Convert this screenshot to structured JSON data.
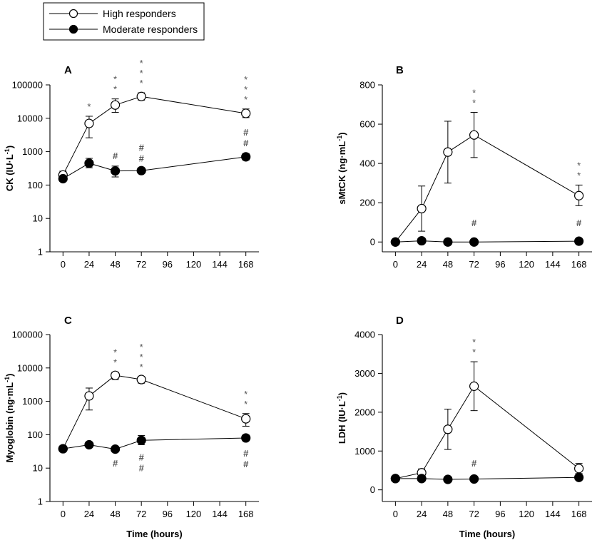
{
  "legend": {
    "series1": "High responders",
    "series2": "Moderate responders"
  },
  "colors": {
    "filled": "#000000",
    "open": "#ffffff",
    "axis": "#000000",
    "annotation": "#555555"
  },
  "chart_data": [
    {
      "panel": "A",
      "type": "line",
      "yscale": "log",
      "ylabel_main": "CK (IU·L",
      "ylabel_sup": "-1",
      "ylabel_end": ")",
      "xlabel": "",
      "x": [
        0,
        24,
        48,
        72,
        168
      ],
      "x_ticks": [
        0,
        24,
        48,
        72,
        96,
        120,
        144,
        168
      ],
      "x_tick_labels": [
        "0",
        "24",
        "48",
        "72",
        "96",
        "120",
        "144",
        "168"
      ],
      "xlim": [
        -12,
        180
      ],
      "ylim": [
        1,
        100000
      ],
      "y_ticks": [
        1,
        10,
        100,
        1000,
        10000,
        100000
      ],
      "y_tick_labels": [
        "1",
        "10",
        "100",
        "1000",
        "10000",
        "100000"
      ],
      "series": [
        {
          "name": "High responders",
          "marker": "open",
          "values": [
            200,
            7000,
            25000,
            45000,
            14000
          ],
          "err_upper": [
            260,
            11500,
            38000,
            58000,
            19000
          ],
          "err_lower": [
            160,
            2600,
            15000,
            35000,
            10500
          ]
        },
        {
          "name": "Moderate responders",
          "marker": "filled",
          "values": [
            155,
            450,
            265,
            270,
            700
          ],
          "err_upper": [
            180,
            630,
            370,
            310,
            880
          ],
          "err_lower": [
            130,
            330,
            175,
            240,
            560
          ]
        }
      ],
      "annotations": [
        {
          "x": 24,
          "symbol": "*",
          "count": 1,
          "position": "above",
          "anchor": 11500
        },
        {
          "x": 48,
          "symbol": "*",
          "count": 2,
          "position": "above",
          "anchor": 38000
        },
        {
          "x": 72,
          "symbol": "*",
          "count": 3,
          "position": "above",
          "anchor": 58000
        },
        {
          "x": 168,
          "symbol": "*",
          "count": 3,
          "position": "above",
          "anchor": 19000
        },
        {
          "x": 48,
          "symbol": "#",
          "count": 1,
          "position": "above",
          "anchor": 370
        },
        {
          "x": 72,
          "symbol": "#",
          "count": 2,
          "position": "above",
          "anchor": 310
        },
        {
          "x": 168,
          "symbol": "#",
          "count": 2,
          "position": "above",
          "anchor": 880
        }
      ]
    },
    {
      "panel": "B",
      "type": "line",
      "yscale": "linear",
      "ylabel_main": "sMtCK (ng·mL",
      "ylabel_sup": "-1",
      "ylabel_end": ")",
      "xlabel": "",
      "x": [
        0,
        24,
        48,
        72,
        168
      ],
      "x_ticks": [
        0,
        24,
        48,
        72,
        96,
        120,
        144,
        168
      ],
      "x_tick_labels": [
        "0",
        "24",
        "48",
        "72",
        "96",
        "120",
        "144",
        "168"
      ],
      "xlim": [
        -12,
        180
      ],
      "ylim": [
        -50,
        800
      ],
      "y_ticks": [
        0,
        200,
        400,
        600,
        800
      ],
      "y_tick_labels": [
        "0",
        "200",
        "400",
        "600",
        "800"
      ],
      "series": [
        {
          "name": "High responders",
          "marker": "open",
          "values": [
            0,
            170,
            458,
            545,
            236
          ],
          "err_upper": [
            0,
            285,
            615,
            660,
            290
          ],
          "err_lower": [
            0,
            55,
            300,
            430,
            185
          ]
        },
        {
          "name": "Moderate responders",
          "marker": "filled",
          "values": [
            0,
            6,
            0,
            0,
            4
          ],
          "err_upper": [
            0,
            10,
            3,
            3,
            8
          ],
          "err_lower": [
            0,
            2,
            0,
            0,
            0
          ]
        }
      ],
      "annotations": [
        {
          "x": 72,
          "symbol": "*",
          "count": 2,
          "position": "above",
          "anchor": 660
        },
        {
          "x": 168,
          "symbol": "*",
          "count": 2,
          "position": "above",
          "anchor": 290
        },
        {
          "x": 72,
          "symbol": "#",
          "count": 1,
          "position": "above",
          "anchor": 45
        },
        {
          "x": 168,
          "symbol": "#",
          "count": 1,
          "position": "above",
          "anchor": 45
        }
      ]
    },
    {
      "panel": "C",
      "type": "line",
      "yscale": "log",
      "ylabel_main": "Myoglobin (ng·mL",
      "ylabel_sup": "-1",
      "ylabel_end": ")",
      "xlabel": "Time (hours)",
      "x": [
        0,
        24,
        48,
        72,
        168
      ],
      "x_ticks": [
        0,
        24,
        48,
        72,
        96,
        120,
        144,
        168
      ],
      "x_tick_labels": [
        "0",
        "24",
        "48",
        "72",
        "96",
        "120",
        "144",
        "168"
      ],
      "xlim": [
        -12,
        180
      ],
      "ylim": [
        1,
        100000
      ],
      "y_ticks": [
        1,
        10,
        100,
        1000,
        10000,
        100000
      ],
      "y_tick_labels": [
        "1",
        "10",
        "100",
        "1000",
        "10000",
        "100000"
      ],
      "series": [
        {
          "name": "High responders",
          "marker": "open",
          "values": [
            38,
            1450,
            6000,
            4500,
            300
          ],
          "err_upper": [
            42,
            2500,
            7500,
            5500,
            430
          ],
          "err_lower": [
            34,
            550,
            4500,
            3500,
            180
          ]
        },
        {
          "name": "Moderate responders",
          "marker": "filled",
          "values": [
            38,
            50,
            37,
            68,
            80
          ],
          "err_upper": [
            42,
            60,
            41,
            95,
            98
          ],
          "err_lower": [
            34,
            42,
            33,
            50,
            66
          ]
        }
      ],
      "annotations": [
        {
          "x": 48,
          "symbol": "*",
          "count": 2,
          "position": "above",
          "anchor": 7500
        },
        {
          "x": 72,
          "symbol": "*",
          "count": 3,
          "position": "above",
          "anchor": 5500
        },
        {
          "x": 168,
          "symbol": "*",
          "count": 2,
          "position": "above",
          "anchor": 430
        },
        {
          "x": 48,
          "symbol": "#",
          "count": 1,
          "position": "below",
          "anchor": 33
        },
        {
          "x": 72,
          "symbol": "#",
          "count": 2,
          "position": "below",
          "anchor": 50
        },
        {
          "x": 168,
          "symbol": "#",
          "count": 2,
          "position": "below",
          "anchor": 66
        }
      ]
    },
    {
      "panel": "D",
      "type": "line",
      "yscale": "linear",
      "ylabel_main": "LDH (IU·L",
      "ylabel_sup": "-1",
      "ylabel_end": ")",
      "xlabel": "Time (hours)",
      "x": [
        0,
        24,
        48,
        72,
        168
      ],
      "x_ticks": [
        0,
        24,
        48,
        72,
        96,
        120,
        144,
        168
      ],
      "x_tick_labels": [
        "0",
        "24",
        "48",
        "72",
        "96",
        "120",
        "144",
        "168"
      ],
      "xlim": [
        -12,
        180
      ],
      "ylim": [
        -300,
        4000
      ],
      "y_ticks": [
        0,
        1000,
        2000,
        3000,
        4000
      ],
      "y_tick_labels": [
        "0",
        "1000",
        "2000",
        "3000",
        "4000"
      ],
      "series": [
        {
          "name": "High responders",
          "marker": "open",
          "values": [
            290,
            440,
            1560,
            2670,
            550
          ],
          "err_upper": [
            330,
            540,
            2080,
            3300,
            680
          ],
          "err_lower": [
            250,
            340,
            1040,
            2040,
            420
          ]
        },
        {
          "name": "Moderate responders",
          "marker": "filled",
          "values": [
            290,
            290,
            270,
            280,
            320
          ],
          "err_upper": [
            320,
            330,
            300,
            310,
            360
          ],
          "err_lower": [
            260,
            250,
            240,
            250,
            280
          ]
        }
      ],
      "annotations": [
        {
          "x": 72,
          "symbol": "*",
          "count": 2,
          "position": "above",
          "anchor": 3300
        },
        {
          "x": 72,
          "symbol": "#",
          "count": 1,
          "position": "above",
          "anchor": 420
        }
      ]
    }
  ]
}
